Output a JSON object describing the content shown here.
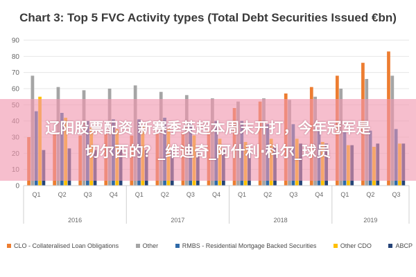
{
  "colors": {
    "background": "#ffffff",
    "grid": "#e6e6e6",
    "axis_text": "#666666",
    "banner_bg": "#f096af",
    "banner_text": "#ffffff"
  },
  "chart_data": {
    "type": "bar",
    "title": "Chart 3: Top 5 FVC Activity types (Total Debt Securities Issued €bn)",
    "ylim": [
      0,
      90
    ],
    "yticks": [
      0,
      10,
      20,
      30,
      40,
      50,
      60,
      70,
      80,
      90
    ],
    "grid": true,
    "legend_position": "bottom",
    "categories": [
      "Q1",
      "Q2",
      "Q3",
      "Q4",
      "Q1",
      "Q2",
      "Q3",
      "Q4",
      "Q1",
      "Q2",
      "Q3",
      "Q4",
      "Q1",
      "Q2",
      "Q3"
    ],
    "year_groups": [
      {
        "label": "2016",
        "count": 4
      },
      {
        "label": "2017",
        "count": 4
      },
      {
        "label": "2018",
        "count": 4
      },
      {
        "label": "2019",
        "count": 3
      }
    ],
    "series": [
      {
        "name": "CLO - Collateralised Loan Obligations",
        "color": "#ed7d31",
        "values": [
          30,
          32,
          31,
          32,
          31,
          32,
          33,
          34,
          48,
          52,
          57,
          61,
          68,
          76,
          83
        ]
      },
      {
        "name": "Other",
        "color": "#a5a5a5",
        "values": [
          68,
          61,
          59,
          60,
          62,
          58,
          56,
          54,
          52,
          54,
          53,
          55,
          60,
          66,
          68
        ]
      },
      {
        "name": "RMBS - Residential Mortgage Backed Securities",
        "color": "#2f6aa8",
        "values": [
          46,
          45,
          40,
          41,
          41,
          42,
          39,
          40,
          40,
          38,
          38,
          35,
          34,
          34,
          35
        ]
      },
      {
        "name": "Other CDO",
        "color": "#ffc000",
        "values": [
          55,
          42,
          36,
          35,
          37,
          35,
          31,
          29,
          27,
          29,
          29,
          27,
          25,
          24,
          26
        ]
      },
      {
        "name": "ABCP",
        "color": "#264478",
        "values": [
          22,
          23,
          22,
          22,
          22,
          23,
          22,
          22,
          22,
          24,
          26,
          26,
          25,
          26,
          26
        ]
      }
    ]
  },
  "banner": {
    "line1": "辽阳股票配资 新赛季英超本周末开打，今年冠军是",
    "line2": "切尔西的？_维迪奇_阿什利·科尔_球员"
  }
}
